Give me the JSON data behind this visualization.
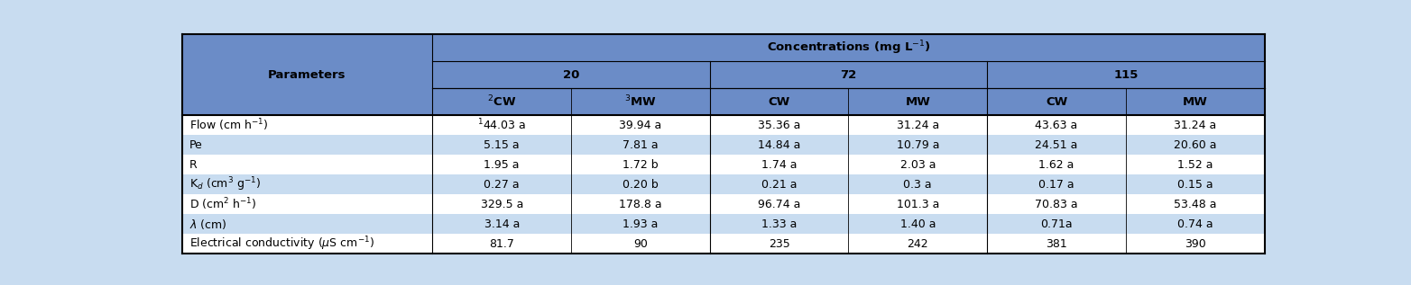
{
  "header_bg": "#6B8CC7",
  "row_bg_light": "#C8DCF0",
  "row_bg_white": "#ffffff",
  "fig_bg": "#C8DCF0",
  "parameter_labels_raw": [
    "Flow (cm h$^{-1}$)",
    "Pe",
    "R",
    "K$_d$ (cm$^3$ g$^{-1}$)",
    "D (cm$^2$ h$^{-1}$)",
    "$\\lambda$ (cm)",
    "Electrical conductivity ($\\mu$S cm$^{-1}$)"
  ],
  "sub_labels": [
    "$^2$CW",
    "$^3$MW",
    "CW",
    "MW",
    "CW",
    "MW"
  ],
  "group_labels": [
    "20",
    "72",
    "115"
  ],
  "concentrations_label": "Concentrations (mg L$^{-1}$)",
  "parameters_label": "Parameters",
  "data": [
    [
      "$^1$44.03 a",
      "39.94 a",
      "35.36 a",
      "31.24 a",
      "43.63 a",
      "31.24 a"
    ],
    [
      "5.15 a",
      "7.81 a",
      "14.84 a",
      "10.79 a",
      "24.51 a",
      "20.60 a"
    ],
    [
      "1.95 a",
      "1.72 b",
      "1.74 a",
      "2.03 a",
      "1.62 a",
      "1.52 a"
    ],
    [
      "0.27 a",
      "0.20 b",
      "0.21 a",
      "0.3 a",
      "0.17 a",
      "0.15 a"
    ],
    [
      "329.5 a",
      "178.8 a",
      "96.74 a",
      "101.3 a",
      "70.83 a",
      "53.48 a"
    ],
    [
      "3.14 a",
      "1.93 a",
      "1.33 a",
      "1.40 a",
      "0.71a",
      "0.74 a"
    ],
    [
      "81.7",
      "90",
      "235",
      "242",
      "381",
      "390"
    ]
  ],
  "row_colors": [
    "#ffffff",
    "#C8DCF0",
    "#ffffff",
    "#C8DCF0",
    "#ffffff",
    "#C8DCF0",
    "#ffffff"
  ],
  "col_ratios": [
    0.235,
    0.13,
    0.13,
    0.13,
    0.13,
    0.13,
    0.13
  ],
  "header_fontsize": 9.5,
  "data_fontsize": 9.0,
  "param_fontsize": 9.0
}
